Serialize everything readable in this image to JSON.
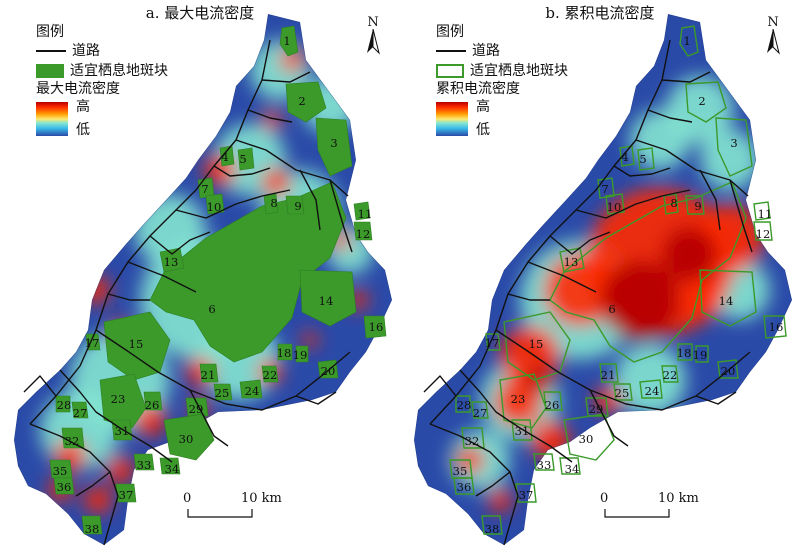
{
  "panels": [
    {
      "title": "a. 最大电流密度",
      "legend": {
        "title": "图例",
        "road_label": "道路",
        "patch_label": "适宜栖息地斑块",
        "patch_style": "filled",
        "ramp_title": "最大电流密度",
        "high": "高",
        "low": "低"
      }
    },
    {
      "title": "b. 累积电流密度",
      "legend": {
        "title": "图例",
        "road_label": "道路",
        "patch_label": "适宜栖息地斑块",
        "patch_style": "outline",
        "ramp_title": "累积电流密度",
        "high": "高",
        "low": "低"
      }
    }
  ],
  "north_label": "N",
  "scale": {
    "zero": "0",
    "end": "10 km"
  },
  "patch_ids": [
    "1",
    "2",
    "3",
    "4",
    "5",
    "6",
    "7",
    "8",
    "9",
    "10",
    "11",
    "12",
    "13",
    "14",
    "15",
    "16",
    "17",
    "18",
    "19",
    "20",
    "21",
    "22",
    "23",
    "24",
    "25",
    "26",
    "27",
    "28",
    "29",
    "30",
    "31",
    "32",
    "33",
    "34",
    "35",
    "36",
    "37",
    "38"
  ],
  "colors": {
    "patch_fill": "#3b9a2a",
    "patch_outline": "#3b9a2a",
    "road": "#111111",
    "low": "#2a4aa8",
    "mid": "#84e6d2",
    "high": "#ff2a00",
    "peak": "#b40000"
  }
}
